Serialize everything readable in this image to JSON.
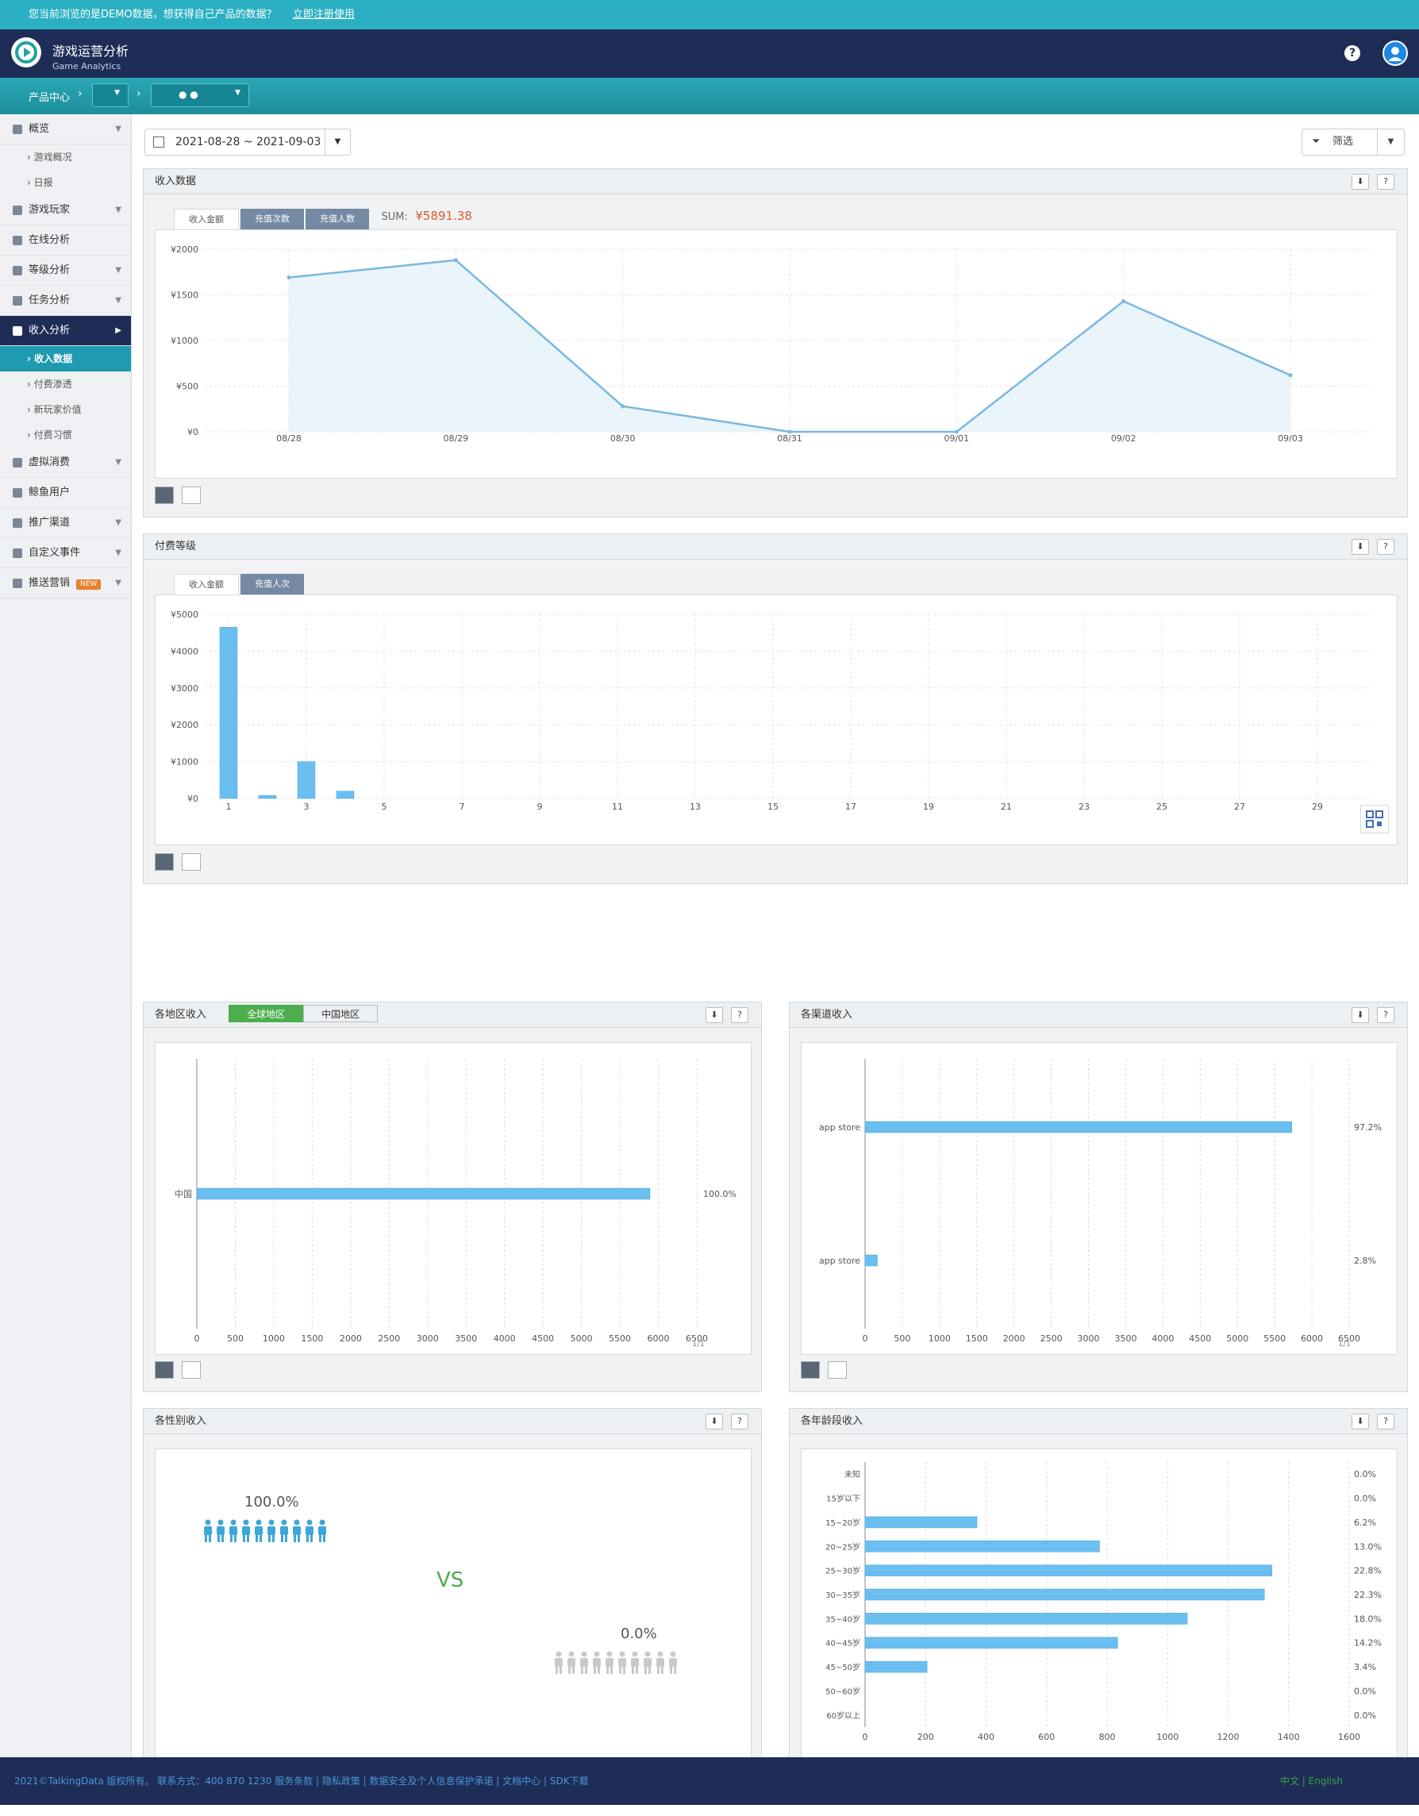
{
  "banner": {
    "text": "您当前浏览的是DEMO数据，想获得自己产品的数据？",
    "link": "立即注册使用"
  },
  "header": {
    "title": "游戏运营分析",
    "subtitle": "Game Analytics",
    "help_icon": "?"
  },
  "breadcrumb": {
    "label": "产品中心"
  },
  "sidebar": {
    "items": [
      {
        "label": "概览"
      },
      {
        "label": "游戏概况"
      },
      {
        "label": "日报"
      },
      {
        "label": "游戏玩家"
      },
      {
        "label": "在线分析"
      },
      {
        "label": "等级分析"
      },
      {
        "label": "任务分析"
      },
      {
        "label": "收入分析"
      },
      {
        "label": "收入数据"
      },
      {
        "label": "付费渗透"
      },
      {
        "label": "新玩家价值"
      },
      {
        "label": "付费习惯"
      },
      {
        "label": "虚拟消费"
      },
      {
        "label": "鲸鱼用户"
      },
      {
        "label": "推广渠道"
      },
      {
        "label": "自定义事件"
      },
      {
        "label": "推送营销"
      }
    ],
    "new_badge": "NEW"
  },
  "toolbar": {
    "date_range": "2021-08-28 ~ 2021-09-03",
    "filter_label": "筛选"
  },
  "revenue": {
    "title": "收入数据",
    "tabs": [
      "收入金额",
      "充值次数",
      "充值人数"
    ],
    "sum_label": "SUM:",
    "sum_value": "¥5891.38",
    "chart_data": {
      "type": "area",
      "x": [
        "08/28",
        "08/29",
        "08/30",
        "08/31",
        "09/01",
        "09/02",
        "09/03"
      ],
      "values": [
        1690,
        1880,
        280,
        0,
        0,
        1430,
        620
      ],
      "yticks": [
        "¥0",
        "¥500",
        "¥1000",
        "¥1500",
        "¥2000"
      ],
      "ylim": [
        0,
        2000
      ]
    }
  },
  "levels": {
    "title": "付费等级",
    "tabs": [
      "收入金额",
      "充值人次"
    ],
    "chart_data": {
      "type": "bar",
      "categories": [
        1,
        2,
        3,
        4,
        5,
        6,
        7,
        8,
        9,
        10,
        11,
        12,
        13,
        14,
        15,
        16,
        17,
        18,
        19,
        20,
        21,
        22,
        23,
        24,
        25,
        26,
        27,
        28,
        29,
        30
      ],
      "values": [
        4650,
        80,
        1000,
        200,
        0,
        0,
        0,
        0,
        0,
        0,
        0,
        0,
        0,
        0,
        0,
        0,
        0,
        0,
        0,
        0,
        0,
        0,
        0,
        0,
        0,
        0,
        0,
        0,
        0,
        0
      ],
      "xticks": [
        "1",
        "3",
        "5",
        "7",
        "9",
        "11",
        "13",
        "15",
        "17",
        "19",
        "21",
        "23",
        "25",
        "27",
        "29"
      ],
      "yticks": [
        "¥0",
        "¥1000",
        "¥2000",
        "¥3000",
        "¥4000",
        "¥5000"
      ],
      "ylim": [
        0,
        5000
      ]
    }
  },
  "region": {
    "title": "各地区收入",
    "tabs": [
      "全球地区",
      "中国地区"
    ],
    "pager": "1/1",
    "chart_data": {
      "type": "bar",
      "categories": [
        "中国"
      ],
      "values": [
        5891.38
      ],
      "percent_labels": [
        "100.0%"
      ],
      "xticks": [
        "0",
        "500",
        "1000",
        "1500",
        "2000",
        "2500",
        "3000",
        "3500",
        "4000",
        "4500",
        "5000",
        "5500",
        "6000",
        "6500"
      ],
      "xlim": [
        0,
        6500
      ]
    }
  },
  "channel": {
    "title": "各渠道收入",
    "pager": "1/1",
    "chart_data": {
      "type": "bar",
      "categories": [
        "app store",
        "app store"
      ],
      "values": [
        5730,
        165
      ],
      "percent_labels": [
        "97.2%",
        "2.8%"
      ],
      "xticks": [
        "0",
        "500",
        "1000",
        "1500",
        "2000",
        "2500",
        "3000",
        "3500",
        "4000",
        "4500",
        "5000",
        "5500",
        "6000",
        "6500"
      ],
      "xlim": [
        0,
        6500
      ]
    }
  },
  "gender": {
    "title": "各性别收入",
    "vs": "VS",
    "chart_data": {
      "type": "bar",
      "categories": [
        "male",
        "female"
      ],
      "values": [
        100.0,
        0.0
      ],
      "percent_labels": [
        "100.0%",
        "0.0%"
      ]
    }
  },
  "age": {
    "title": "各年龄段收入",
    "chart_data": {
      "type": "bar",
      "categories": [
        "未知",
        "15岁以下",
        "15~20岁",
        "20~25岁",
        "25~30岁",
        "30~35岁",
        "35~40岁",
        "40~45岁",
        "45~50岁",
        "50~60岁",
        "60岁以上"
      ],
      "values": [
        0,
        0,
        370,
        775,
        1345,
        1320,
        1065,
        835,
        205,
        0,
        0
      ],
      "percent_labels": [
        "0.0%",
        "0.0%",
        "6.2%",
        "13.0%",
        "22.8%",
        "22.3%",
        "18.0%",
        "14.2%",
        "3.4%",
        "0.0%",
        "0.0%"
      ],
      "xticks": [
        "0",
        "200",
        "400",
        "600",
        "800",
        "1000",
        "1200",
        "1400",
        "1600"
      ],
      "xlim": [
        0,
        1600
      ]
    }
  },
  "footer": {
    "text": "2021©TalkingData 版权所有。 联系方式：400 870 1230   服务条款 | 隐私政策 | 数据安全及个人信息保护承诺 | 文档中心 | SDK下载",
    "lang": "中文  |  English"
  },
  "colors": {
    "bar": "#6bbef0",
    "line": "#7ab8e0",
    "accent": "#e05a2b",
    "green": "#4cae4c",
    "navy": "#1d2d56"
  }
}
